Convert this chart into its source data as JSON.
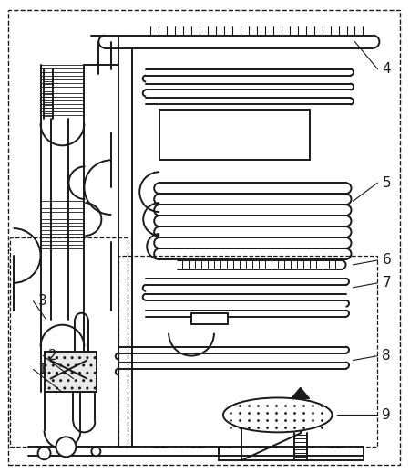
{
  "figure_width": 4.5,
  "figure_height": 5.19,
  "dpi": 100,
  "bg_color": "#ffffff",
  "lc": "#1a1a1a",
  "lw": 1.4
}
